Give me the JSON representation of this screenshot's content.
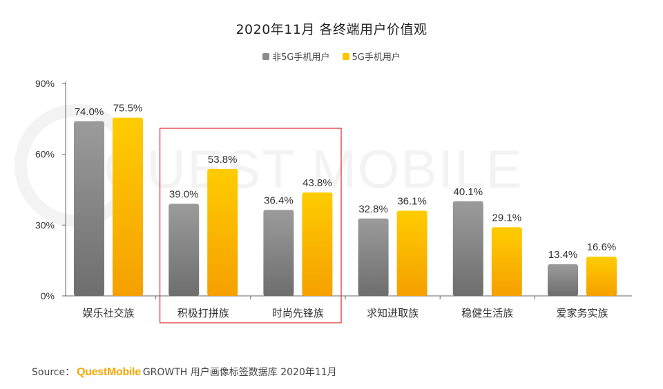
{
  "chart_data": {
    "type": "bar",
    "title": "2020年11月 各终端用户价值观",
    "categories": [
      "娱乐社交族",
      "积极打拼族",
      "时尚先锋族",
      "求知进取族",
      "稳健生活族",
      "爱家务实族"
    ],
    "series": [
      {
        "name": "非5G手机用户",
        "values": [
          74.0,
          39.0,
          36.4,
          32.8,
          40.1,
          13.4
        ],
        "labels": [
          "74.0%",
          "39.0%",
          "36.4%",
          "32.8%",
          "40.1%",
          "13.4%"
        ],
        "color": "#8c8c8c"
      },
      {
        "name": "5G手机用户",
        "values": [
          75.5,
          53.8,
          43.8,
          36.1,
          29.1,
          16.6
        ],
        "labels": [
          "75.5%",
          "53.8%",
          "43.8%",
          "36.1%",
          "29.1%",
          "16.6%"
        ],
        "color": "#ffc400"
      }
    ],
    "yticks": [
      "0%",
      "30%",
      "60%",
      "90%"
    ],
    "ytick_values": [
      0,
      30,
      60,
      90
    ],
    "ylim": [
      0,
      90
    ],
    "highlighted_categories": [
      "积极打拼族",
      "时尚先锋族"
    ],
    "highlight_color": "#e0242b"
  },
  "watermark": "QUEST MOBILE",
  "source": {
    "prefix": "Source：",
    "brand": "QuestMobile",
    "suffix": "GROWTH 用户画像标签数据库 2020年11月"
  }
}
